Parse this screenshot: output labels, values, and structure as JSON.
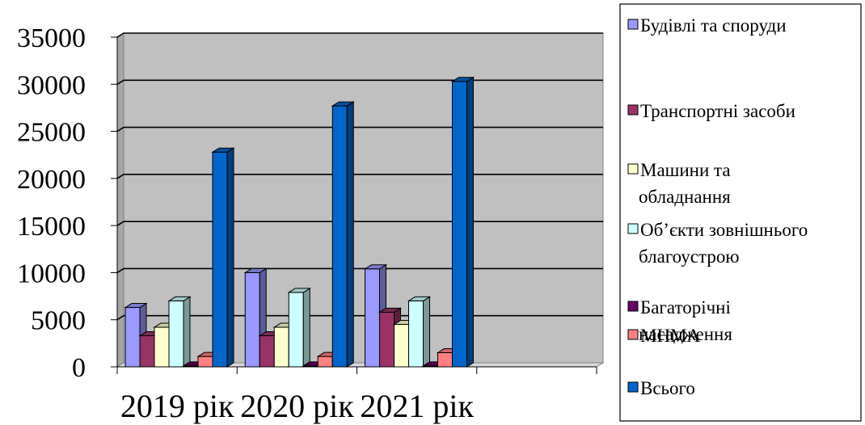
{
  "chart_data": {
    "type": "bar",
    "style": "3d-clustered-column",
    "categories": [
      "2019 рік",
      "2020 рік",
      "2021 рік",
      ""
    ],
    "series": [
      {
        "name": "Будівлі та споруди",
        "color": "#9999ff",
        "values": [
          6300,
          10000,
          10400,
          null
        ]
      },
      {
        "name": "Транспортні засоби",
        "color": "#993366",
        "values": [
          3300,
          3300,
          5800,
          null
        ]
      },
      {
        "name": "Машини та обладнання",
        "color": "#ffffcc",
        "values": [
          4200,
          4200,
          4500,
          null
        ]
      },
      {
        "name": "Об’єкти зовнішнього благоустрою",
        "color": "#ccffff",
        "values": [
          7000,
          7900,
          7000,
          null
        ]
      },
      {
        "name": "Багаторічні насадження",
        "color": "#660066",
        "values": [
          100,
          100,
          100,
          null
        ]
      },
      {
        "name": "МНМА",
        "color": "#ff8080",
        "values": [
          1100,
          1100,
          1500,
          null
        ]
      },
      {
        "name": "Всього",
        "color": "#0066cc",
        "values": [
          22800,
          27700,
          30300,
          null
        ]
      }
    ],
    "yticks": [
      "0",
      "5000",
      "10000",
      "15000",
      "20000",
      "25000",
      "30000",
      "35000"
    ],
    "ylim": [
      0,
      35000
    ],
    "grid": true,
    "plot_background": "#c0c0c0",
    "legend_position": "right"
  }
}
